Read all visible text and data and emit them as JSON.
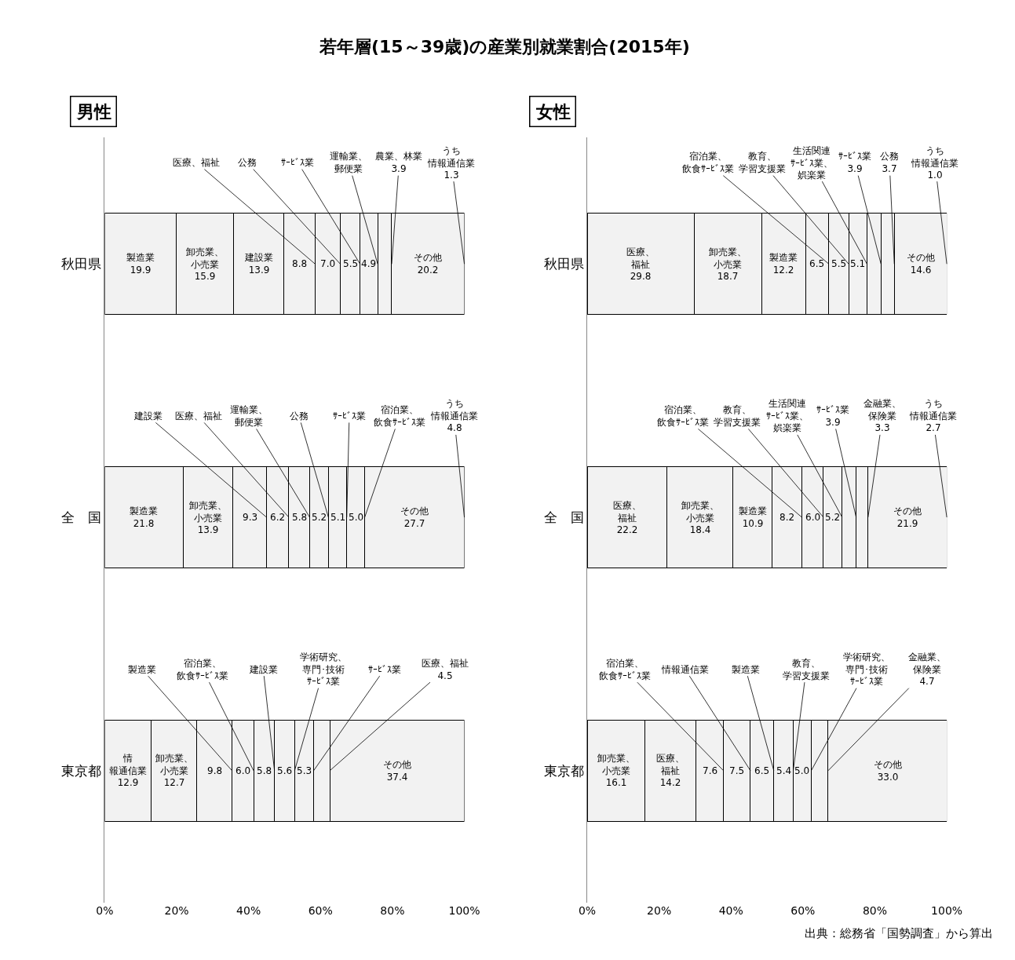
{
  "chart_data": [
    {
      "type": "bar",
      "orientation": "horizontal",
      "stacked": true,
      "title": "男性",
      "categories": [
        "秋田県",
        "全　国",
        "東京都"
      ],
      "xlim": [
        0,
        100
      ],
      "xticks": [
        {
          "value": 0,
          "label": "0%"
        },
        {
          "value": 20,
          "label": "20%"
        },
        {
          "value": 40,
          "label": "40%"
        },
        {
          "value": 60,
          "label": "60%"
        },
        {
          "value": 80,
          "label": "80%"
        },
        {
          "value": 100,
          "label": "100%"
        }
      ],
      "series": [
        {
          "color": "#f2f2f2",
          "values": [
            19.9,
            21.8,
            12.9
          ],
          "value_labels": [
            "製造業19.9",
            "製造業21.8",
            "情報通信業12.9"
          ]
        },
        {
          "color": "#f2f2f2",
          "values": [
            15.9,
            13.9,
            12.7
          ],
          "value_labels": [
            "卸売業、小売業15.9",
            "卸売業、小売業13.9",
            "卸売業、小売業12.7"
          ]
        },
        {
          "color": "#f2f2f2",
          "values": [
            13.9,
            9.3,
            9.8
          ],
          "value_labels": [
            "建設業13.9",
            "9.3",
            "9.8"
          ]
        },
        {
          "color": "#f2f2f2",
          "values": [
            8.8,
            6.2,
            6.0
          ],
          "value_labels": [
            "8.8",
            "6.2",
            "6.0"
          ]
        },
        {
          "color": "#f2f2f2",
          "values": [
            7.0,
            5.8,
            5.8
          ],
          "value_labels": [
            "7.0",
            "5.8",
            "5.8"
          ]
        },
        {
          "color": "#f2f2f2",
          "values": [
            5.5,
            5.2,
            5.6
          ],
          "value_labels": [
            "5.5",
            "5.2",
            "5.6"
          ]
        },
        {
          "color": "#f2f2f2",
          "values": [
            4.9,
            5.1,
            5.3
          ],
          "value_labels": [
            "4.9",
            "5.1",
            "5.3"
          ]
        },
        {
          "color": "#f2f2f2",
          "values": [
            3.9,
            5.0,
            4.5
          ],
          "value_labels": [
            null,
            "5.0",
            null
          ]
        },
        {
          "color": "#f2f2f2",
          "values": [
            20.2,
            27.7,
            37.4
          ],
          "value_labels": [
            "その他20.2",
            "その他27.7",
            "その他37.4"
          ]
        }
      ],
      "annotations": [
        "若年層(15～39歳)の産業別就業割合(2015年)",
        {
          "text": "医療、福祉",
          "x": 58.5,
          "y": "秋田県"
        },
        {
          "text": "公務",
          "x": 65.5,
          "y": "秋田県"
        },
        {
          "text": "ｻｰﾋﾞｽ業",
          "x": 71.0,
          "y": "秋田県"
        },
        {
          "text": "運輸業、郵便業",
          "x": 75.9,
          "y": "秋田県"
        },
        {
          "text": "農業、林業3.9",
          "x": 79.8,
          "y": "秋田県"
        },
        {
          "text": "うち情報通信業1.3",
          "x": 100,
          "y": "秋田県"
        },
        {
          "text": "建設業",
          "x": 45.0,
          "y": "全　国"
        },
        {
          "text": "医療、福祉",
          "x": 51.2,
          "y": "全　国"
        },
        {
          "text": "運輸業、郵便業",
          "x": 57.0,
          "y": "全　国"
        },
        {
          "text": "公務",
          "x": 62.2,
          "y": "全　国"
        },
        {
          "text": "ｻｰﾋﾞｽ業",
          "x": 67.3,
          "y": "全　国"
        },
        {
          "text": "宿泊業、飲食ｻｰﾋﾞｽ業",
          "x": 72.3,
          "y": "全　国"
        },
        {
          "text": "うち情報通信業4.8",
          "x": 100,
          "y": "全　国"
        },
        {
          "text": "製造業",
          "x": 35.4,
          "y": "東京都"
        },
        {
          "text": "宿泊業、飲食ｻｰﾋﾞｽ業",
          "x": 41.4,
          "y": "東京都"
        },
        {
          "text": "建設業",
          "x": 47.2,
          "y": "東京都"
        },
        {
          "text": "学術研究、専門･技術ｻｰﾋﾞｽ業",
          "x": 52.8,
          "y": "東京都"
        },
        {
          "text": "ｻｰﾋﾞｽ業",
          "x": 58.1,
          "y": "東京都"
        },
        {
          "text": "医療、福祉4.5",
          "x": 62.6,
          "y": "東京都"
        }
      ]
    },
    {
      "type": "bar",
      "orientation": "horizontal",
      "stacked": true,
      "title": "女性",
      "categories": [
        "秋田県",
        "全　国",
        "東京都"
      ],
      "xlim": [
        0,
        100
      ],
      "xticks": [
        {
          "value": 0,
          "label": "0%"
        },
        {
          "value": 20,
          "label": "20%"
        },
        {
          "value": 40,
          "label": "40%"
        },
        {
          "value": 60,
          "label": "60%"
        },
        {
          "value": 80,
          "label": "80%"
        },
        {
          "value": 100,
          "label": "100%"
        }
      ],
      "series": [
        {
          "color": "#f2f2f2",
          "values": [
            29.8,
            22.2,
            16.1
          ],
          "value_labels": [
            "医療、福祉29.8",
            "医療、福祉22.2",
            "卸売業、小売業16.1"
          ]
        },
        {
          "color": "#f2f2f2",
          "values": [
            18.7,
            18.4,
            14.2
          ],
          "value_labels": [
            "卸売業、小売業18.7",
            "卸売業、小売業18.4",
            "医療、福祉14.2"
          ]
        },
        {
          "color": "#f2f2f2",
          "values": [
            12.2,
            10.9,
            7.6
          ],
          "value_labels": [
            "製造業12.2",
            "製造業10.9",
            "7.6"
          ]
        },
        {
          "color": "#f2f2f2",
          "values": [
            6.5,
            8.2,
            7.5
          ],
          "value_labels": [
            "6.5",
            "8.2",
            "7.5"
          ]
        },
        {
          "color": "#f2f2f2",
          "values": [
            5.5,
            6.0,
            6.5
          ],
          "value_labels": [
            "5.5",
            "6.0",
            "6.5"
          ]
        },
        {
          "color": "#f2f2f2",
          "values": [
            5.1,
            5.2,
            5.4
          ],
          "value_labels": [
            "5.1",
            "5.2",
            "5.4"
          ]
        },
        {
          "color": "#f2f2f2",
          "values": [
            3.9,
            3.9,
            5.0
          ],
          "value_labels": [
            null,
            null,
            "5.0"
          ]
        },
        {
          "color": "#f2f2f2",
          "values": [
            3.7,
            3.3,
            4.7
          ],
          "value_labels": [
            null,
            null,
            null
          ]
        },
        {
          "color": "#f2f2f2",
          "values": [
            14.6,
            21.9,
            33.0
          ],
          "value_labels": [
            "その他14.6",
            "その他21.9",
            "その他33.0"
          ]
        }
      ],
      "annotations": [
        "出典：総務省「国勢調査」から算出",
        {
          "text": "宿泊業、飲食ｻｰﾋﾞｽ業",
          "x": 67.2,
          "y": "秋田県"
        },
        {
          "text": "教育、学習支援業",
          "x": 72.7,
          "y": "秋田県"
        },
        {
          "text": "生活関連ｻｰﾋﾞｽ業、娯楽業",
          "x": 77.8,
          "y": "秋田県"
        },
        {
          "text": "ｻｰﾋﾞｽ業3.9",
          "x": 81.7,
          "y": "秋田県"
        },
        {
          "text": "公務3.7",
          "x": 85.4,
          "y": "秋田県"
        },
        {
          "text": "うち情報通信業1.0",
          "x": 100,
          "y": "秋田県"
        },
        {
          "text": "宿泊業、飲食ｻｰﾋﾞｽ業",
          "x": 59.7,
          "y": "全　国"
        },
        {
          "text": "教育、学習支援業",
          "x": 65.7,
          "y": "全　国"
        },
        {
          "text": "生活関連ｻｰﾋﾞｽ業、娯楽業",
          "x": 70.9,
          "y": "全　国"
        },
        {
          "text": "ｻｰﾋﾞｽ業3.9",
          "x": 74.8,
          "y": "全　国"
        },
        {
          "text": "金融業、保険業3.3",
          "x": 78.1,
          "y": "全　国"
        },
        {
          "text": "うち情報通信業2.7",
          "x": 100,
          "y": "全　国"
        },
        {
          "text": "宿泊業、飲食ｻｰﾋﾞｽ業",
          "x": 37.9,
          "y": "東京都"
        },
        {
          "text": "情報通信業",
          "x": 45.4,
          "y": "東京都"
        },
        {
          "text": "製造業",
          "x": 51.9,
          "y": "東京都"
        },
        {
          "text": "教育、学習支援業",
          "x": 57.3,
          "y": "東京都"
        },
        {
          "text": "学術研究、専門･技術ｻｰﾋﾞｽ業",
          "x": 62.3,
          "y": "東京都"
        },
        {
          "text": "金融業、保険業4.7",
          "x": 67.0,
          "y": "東京都"
        }
      ]
    }
  ]
}
